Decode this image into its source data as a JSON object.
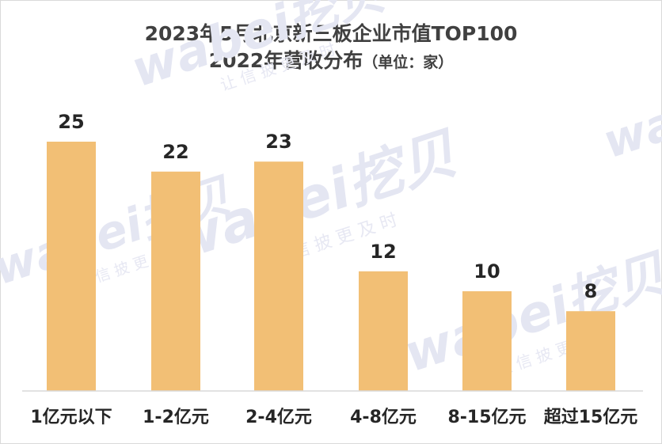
{
  "chart_data": {
    "type": "bar",
    "title_line1": "2023年5月北京新三板企业市值TOP100",
    "title_line2": "2022年营收分布",
    "unit_note": "（单位：家）",
    "categories": [
      "1亿元以下",
      "1-2亿元",
      "2-4亿元",
      "4-8亿元",
      "8-15亿元",
      "超过15亿元"
    ],
    "values": [
      25,
      22,
      23,
      12,
      10,
      8
    ],
    "ylim": [
      0,
      30
    ],
    "grid": false,
    "legend": "none",
    "bar_color": "#f2bf75",
    "label_color": "#262626",
    "title_color": "#404040"
  },
  "watermark": {
    "wordmark": "wabei挖贝",
    "slogan": "让 信 披 更 及 时",
    "color": "#e4e6f2"
  }
}
